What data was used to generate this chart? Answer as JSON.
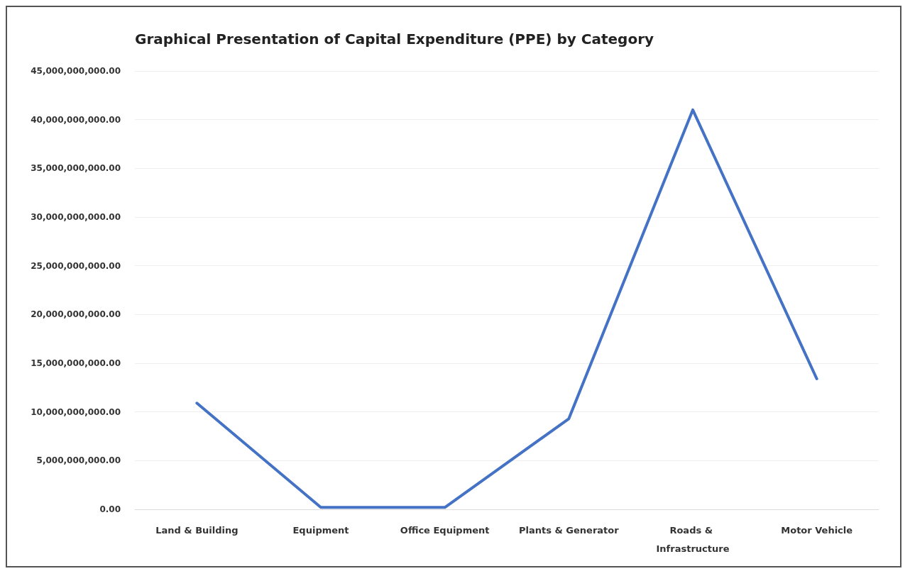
{
  "chart_data": {
    "type": "line",
    "title": "Graphical Presentation of Capital Expenditure (PPE) by Category",
    "categories": [
      "Land & Building",
      "Equipment",
      "Office Equipment",
      "Plants & Generator",
      "Roads & Infrastructure",
      "Motor Vehicle"
    ],
    "series": [
      {
        "color": "#4472c4",
        "values": [
          10900000000,
          200000000,
          200000000,
          9300000000,
          41000000000,
          13400000000
        ]
      }
    ],
    "ylim": [
      0,
      45000000000
    ],
    "yticks": [
      {
        "value": 0,
        "label": "0.00"
      },
      {
        "value": 5000000000,
        "label": "5,000,000,000.00"
      },
      {
        "value": 10000000000,
        "label": "10,000,000,000.00"
      },
      {
        "value": 15000000000,
        "label": "15,000,000,000.00"
      },
      {
        "value": 20000000000,
        "label": "20,000,000,000.00"
      },
      {
        "value": 25000000000,
        "label": "25,000,000,000.00"
      },
      {
        "value": 30000000000,
        "label": "30,000,000,000.00"
      },
      {
        "value": 35000000000,
        "label": "35,000,000,000.00"
      },
      {
        "value": 40000000000,
        "label": "40,000,000,000.00"
      },
      {
        "value": 45000000000,
        "label": "45,000,000,000.00"
      }
    ],
    "grid": "y",
    "marker": "none",
    "line_style": "solid"
  }
}
